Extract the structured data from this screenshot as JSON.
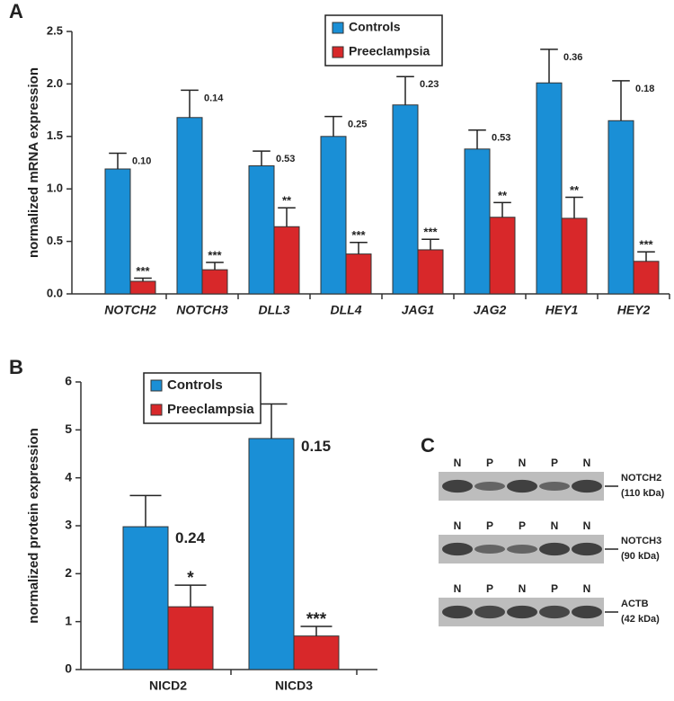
{
  "chart_data": [
    {
      "type": "bar",
      "label": "A",
      "y_label": "normalized mRNA expression",
      "categories": [
        "NOTCH2",
        "NOTCH3",
        "DLL3",
        "DLL4",
        "JAG1",
        "JAG2",
        "HEY1",
        "HEY2"
      ],
      "series": [
        {
          "name": "Controls",
          "color": "#1a8fd6",
          "values": [
            1.19,
            1.68,
            1.22,
            1.5,
            1.8,
            1.38,
            2.01,
            1.65
          ],
          "errors": [
            0.15,
            0.26,
            0.14,
            0.19,
            0.27,
            0.18,
            0.32,
            0.38
          ],
          "value_labels": null,
          "annotations": [
            "0.10",
            "0.14",
            "0.53",
            "0.25",
            "0.23",
            "0.53",
            "0.36",
            "0.18"
          ]
        },
        {
          "name": "Preeclampsia",
          "color": "#d8282a",
          "values": [
            0.12,
            0.23,
            0.64,
            0.38,
            0.42,
            0.73,
            0.72,
            0.31
          ],
          "errors": [
            0.03,
            0.07,
            0.18,
            0.11,
            0.1,
            0.14,
            0.2,
            0.09
          ],
          "annotations": [
            "***",
            "***",
            "**",
            "***",
            "***",
            "**",
            "**",
            "***"
          ]
        }
      ],
      "ylim": [
        0,
        2.5
      ],
      "yticks": [
        {
          "value": 0,
          "label": "0.0"
        },
        {
          "value": 0.5,
          "label": "0.5"
        },
        {
          "value": 1,
          "label": "1.0"
        },
        {
          "value": 1.5,
          "label": "1.5"
        },
        {
          "value": 2,
          "label": "2.0"
        },
        {
          "value": 2.5,
          "label": "2.5"
        }
      ],
      "grid": false,
      "legend": "top"
    },
    {
      "type": "bar",
      "label": "B",
      "y_label": "normalized protein expression",
      "categories": [
        "NICD2",
        "NICD3"
      ],
      "series": [
        {
          "name": "Controls",
          "color": "#1a8fd6",
          "values": [
            2.98,
            4.82
          ],
          "errors": [
            0.65,
            0.72
          ],
          "annotations": [
            "0.24",
            "0.15"
          ]
        },
        {
          "name": "Preeclampsia",
          "color": "#d8282a",
          "values": [
            1.31,
            0.7
          ],
          "errors": [
            0.45,
            0.2
          ],
          "annotations": [
            "*",
            "***"
          ]
        }
      ],
      "ylim": [
        0,
        6
      ],
      "yticks": [
        0,
        1,
        2,
        3,
        4,
        5,
        6
      ],
      "grid": false,
      "legend": "top left"
    }
  ],
  "blot": {
    "label": "C",
    "panels": [
      {
        "lanes": [
          "N",
          "P",
          "N",
          "P",
          "N"
        ],
        "name": "NOTCH2",
        "size": "(110 kDa)"
      },
      {
        "lanes": [
          "N",
          "P",
          "P",
          "N",
          "N"
        ],
        "name": "NOTCH3",
        "size": "(90 kDa)"
      },
      {
        "lanes": [
          "N",
          "P",
          "N",
          "P",
          "N"
        ],
        "name": "ACTB",
        "size": "(42 kDa)"
      }
    ]
  }
}
